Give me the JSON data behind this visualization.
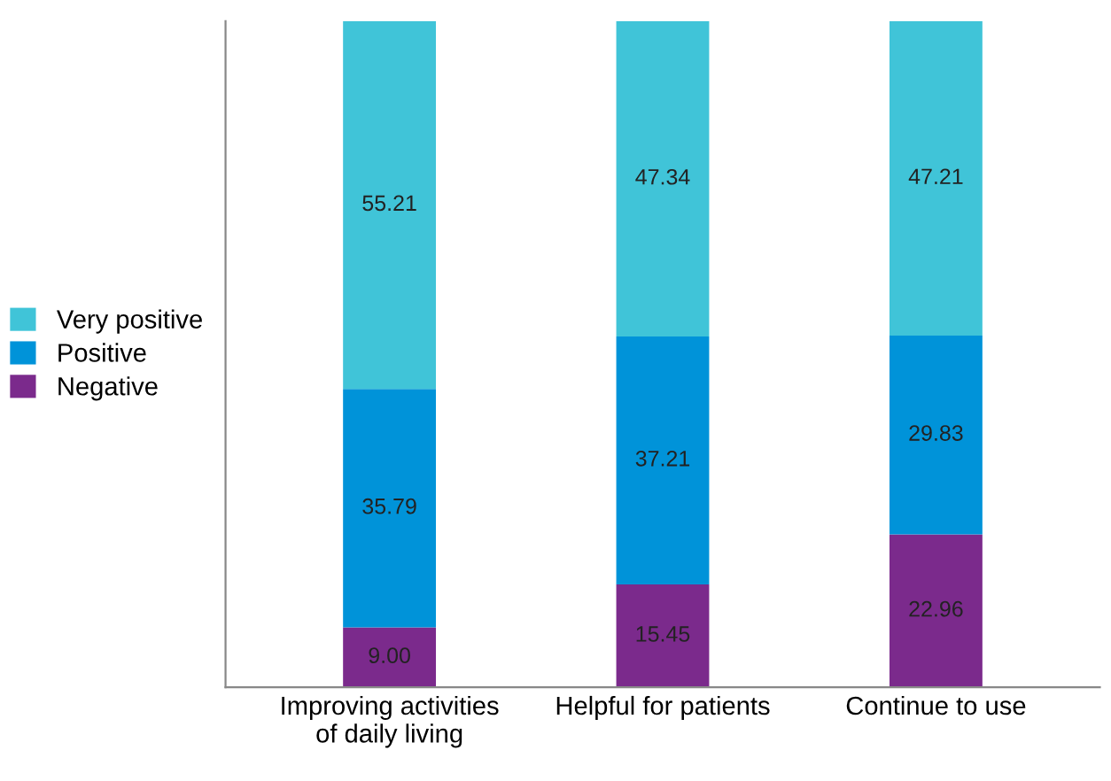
{
  "chart_data": {
    "type": "bar",
    "stacked": true,
    "legend": "left",
    "grid": false,
    "categories": [
      "Improving activities\nof daily living",
      "Helpful for patients",
      "Continue to use"
    ],
    "series": [
      {
        "name": "Negative",
        "color": "#7b2a8c",
        "values": [
          9.0,
          15.45,
          22.96
        ],
        "value_labels": [
          "9.00",
          "15.45",
          "22.96"
        ]
      },
      {
        "name": "Positive",
        "color": "#0093d9",
        "values": [
          35.79,
          37.21,
          29.83
        ],
        "value_labels": [
          "35.79",
          "37.21",
          "29.83"
        ]
      },
      {
        "name": "Very positive",
        "color": "#40c4d8",
        "values": [
          55.21,
          47.34,
          47.21
        ],
        "value_labels": [
          "55.21",
          "47.34",
          "47.21"
        ]
      }
    ]
  }
}
